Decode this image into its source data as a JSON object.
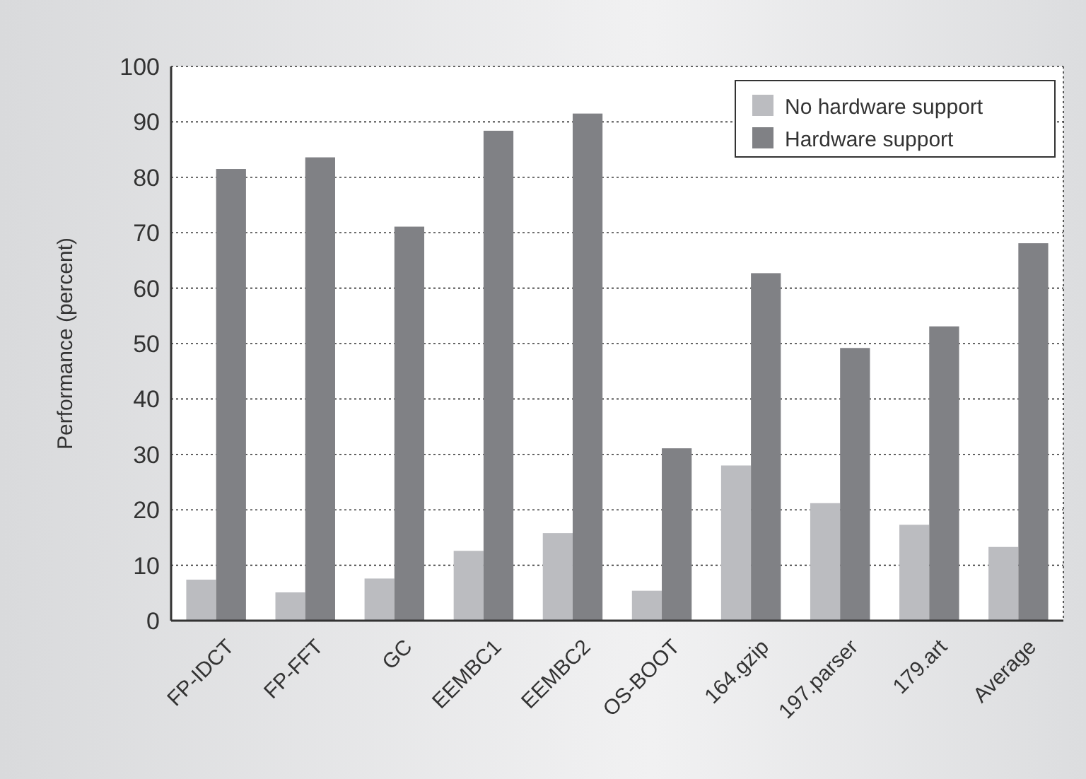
{
  "chart_data": {
    "type": "bar",
    "ylabel": "Performance (percent)",
    "categories": [
      "FP-IDCT",
      "FP-FFT",
      "GC",
      "EEMBC1",
      "EEMBC2",
      "OS-BOOT",
      "164.gzip",
      "197.parser",
      "179.art",
      "Average"
    ],
    "series": [
      {
        "name": "No hardware support",
        "color": "#bbbcc0",
        "values": [
          7.4,
          5.1,
          7.6,
          12.6,
          15.8,
          5.4,
          28.0,
          21.2,
          17.3,
          13.3
        ]
      },
      {
        "name": "Hardware support",
        "color": "#808185",
        "values": [
          81.5,
          83.6,
          71.1,
          88.4,
          91.5,
          31.1,
          62.7,
          49.2,
          53.1,
          68.1
        ]
      }
    ],
    "ylim": [
      0,
      100
    ],
    "yticks": [
      0,
      10,
      20,
      30,
      40,
      50,
      60,
      70,
      80,
      90,
      100
    ],
    "grid": "y",
    "legend": "top right"
  }
}
